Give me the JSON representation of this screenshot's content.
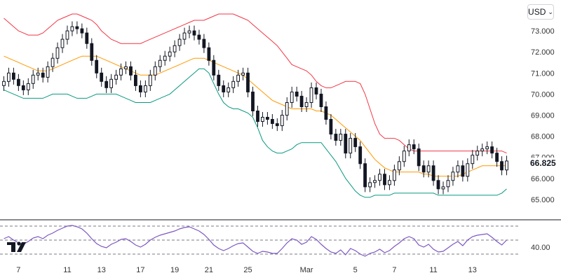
{
  "currency_selector": {
    "label": "USD",
    "chevron_icon": "chevron-down-icon"
  },
  "logo": {
    "name": "tradingview-logo"
  },
  "colors": {
    "candle_up": "#131722",
    "candle_down": "#131722",
    "upper_band": "#f23645",
    "middle_band": "#ff9800",
    "lower_band": "#089981",
    "rsi_line": "#7e57c2",
    "grid_dash": "#787b86",
    "separator": "#131722"
  },
  "chart_data": [
    {
      "type": "candlestick",
      "title": "",
      "last_value_label": "66.825",
      "y_ticks": [
        "73.000",
        "72.000",
        "71.000",
        "70.000",
        "69.000",
        "68.000",
        "67.000",
        "66.000",
        "65.000"
      ],
      "y_tick_values": [
        73,
        72,
        71,
        70,
        69,
        68,
        67,
        66,
        65
      ],
      "ylim": [
        64.5,
        73.8
      ],
      "x_labels": [
        "7",
        "11",
        "13",
        "17",
        "19",
        "21",
        "25",
        "Mar",
        "5",
        "7",
        "11",
        "13"
      ],
      "x_label_index": [
        3,
        13,
        20,
        28,
        35,
        42,
        50,
        62,
        72,
        80,
        88,
        96
      ],
      "bar_count": 104,
      "close": [
        70.6,
        71.0,
        70.7,
        70.4,
        70.2,
        70.5,
        70.9,
        71.0,
        70.8,
        71.3,
        71.7,
        72.2,
        72.6,
        73.0,
        73.2,
        73.1,
        72.9,
        72.4,
        71.6,
        71.0,
        70.6,
        70.3,
        70.7,
        70.9,
        71.2,
        71.3,
        70.9,
        70.4,
        70.1,
        70.4,
        70.9,
        71.3,
        71.6,
        71.8,
        72.0,
        72.3,
        72.6,
        72.9,
        73.0,
        72.8,
        72.6,
        72.2,
        71.6,
        70.9,
        70.4,
        70.1,
        70.3,
        70.6,
        70.9,
        71.0,
        70.1,
        69.2,
        68.7,
        68.9,
        68.8,
        68.6,
        68.5,
        69.0,
        69.6,
        70.1,
        69.9,
        69.4,
        69.6,
        70.3,
        70.0,
        69.4,
        68.8,
        68.1,
        67.8,
        68.1,
        67.2,
        67.9,
        67.5,
        66.7,
        65.6,
        65.8,
        65.9,
        66.2,
        65.7,
        65.9,
        66.4,
        66.8,
        67.3,
        67.6,
        67.4,
        66.6,
        66.3,
        66.6,
        65.9,
        65.5,
        65.6,
        65.9,
        66.3,
        66.6,
        66.1,
        66.7,
        67.1,
        67.3,
        67.4,
        67.5,
        67.2,
        66.8,
        66.4,
        66.825
      ],
      "open": [
        70.4,
        70.6,
        71.0,
        70.7,
        70.4,
        70.2,
        70.5,
        70.9,
        71.0,
        70.8,
        71.3,
        71.7,
        72.2,
        72.6,
        73.0,
        73.2,
        73.1,
        72.9,
        72.4,
        71.6,
        71.0,
        70.6,
        70.3,
        70.7,
        70.9,
        71.2,
        71.3,
        70.9,
        70.4,
        70.1,
        70.4,
        70.9,
        71.3,
        71.6,
        71.8,
        72.0,
        72.3,
        72.6,
        72.9,
        73.0,
        72.8,
        72.6,
        72.2,
        71.6,
        70.9,
        70.4,
        70.1,
        70.3,
        70.6,
        70.9,
        71.0,
        70.1,
        69.2,
        68.7,
        68.9,
        68.8,
        68.6,
        68.5,
        69.0,
        69.6,
        70.1,
        69.9,
        69.4,
        69.6,
        70.3,
        70.0,
        69.4,
        68.8,
        68.1,
        67.8,
        68.1,
        67.2,
        67.9,
        67.5,
        66.7,
        65.6,
        65.8,
        65.9,
        66.2,
        65.7,
        65.9,
        66.4,
        66.8,
        67.3,
        67.6,
        67.4,
        66.6,
        66.3,
        66.6,
        65.9,
        65.5,
        65.6,
        65.9,
        66.3,
        66.6,
        66.1,
        66.7,
        67.1,
        67.3,
        67.4,
        67.5,
        67.2,
        66.8,
        66.4
      ],
      "upper_band": [
        73.6,
        73.4,
        73.2,
        73.0,
        72.9,
        72.8,
        72.8,
        72.8,
        72.9,
        73.1,
        73.3,
        73.5,
        73.6,
        73.7,
        73.8,
        73.8,
        73.7,
        73.6,
        73.5,
        73.3,
        73.0,
        72.8,
        72.6,
        72.5,
        72.4,
        72.4,
        72.4,
        72.4,
        72.4,
        72.5,
        72.6,
        72.7,
        72.8,
        72.9,
        73.0,
        73.1,
        73.2,
        73.3,
        73.4,
        73.5,
        73.5,
        73.5,
        73.6,
        73.7,
        73.8,
        73.8,
        73.8,
        73.8,
        73.7,
        73.6,
        73.5,
        73.3,
        73.1,
        72.9,
        72.7,
        72.5,
        72.3,
        72.0,
        71.7,
        71.4,
        71.3,
        71.2,
        71.1,
        70.9,
        70.6,
        70.4,
        70.3,
        70.3,
        70.4,
        70.5,
        70.6,
        70.6,
        70.6,
        70.5,
        70.0,
        69.3,
        68.6,
        68.1,
        67.9,
        67.9,
        67.9,
        67.8,
        67.6,
        67.4,
        67.3,
        67.3,
        67.3,
        67.3,
        67.3,
        67.3,
        67.3,
        67.3,
        67.3,
        67.3,
        67.3,
        67.3,
        67.3,
        67.3,
        67.3,
        67.3,
        67.3,
        67.3,
        67.3,
        67.2
      ],
      "middle_band": [
        71.8,
        71.7,
        71.6,
        71.5,
        71.4,
        71.3,
        71.2,
        71.1,
        71.1,
        71.1,
        71.2,
        71.3,
        71.4,
        71.5,
        71.6,
        71.7,
        71.8,
        71.8,
        71.8,
        71.8,
        71.7,
        71.6,
        71.5,
        71.4,
        71.3,
        71.2,
        71.1,
        71.0,
        70.9,
        70.9,
        70.9,
        70.9,
        71.0,
        71.1,
        71.2,
        71.3,
        71.4,
        71.5,
        71.6,
        71.7,
        71.7,
        71.7,
        71.6,
        71.5,
        71.4,
        71.3,
        71.2,
        71.1,
        71.0,
        70.9,
        70.7,
        70.5,
        70.3,
        70.1,
        69.9,
        69.7,
        69.6,
        69.5,
        69.4,
        69.3,
        69.3,
        69.3,
        69.3,
        69.3,
        69.2,
        69.2,
        69.1,
        69.0,
        68.8,
        68.6,
        68.4,
        68.2,
        68.0,
        67.8,
        67.5,
        67.2,
        66.9,
        66.7,
        66.5,
        66.4,
        66.3,
        66.3,
        66.3,
        66.3,
        66.3,
        66.3,
        66.2,
        66.2,
        66.1,
        66.1,
        66.1,
        66.1,
        66.1,
        66.1,
        66.2,
        66.3,
        66.4,
        66.5,
        66.6,
        66.6,
        66.6,
        66.6,
        66.6,
        66.6
      ],
      "lower_band": [
        70.2,
        70.1,
        70.0,
        69.9,
        69.8,
        69.8,
        69.8,
        69.8,
        69.8,
        69.9,
        70.0,
        70.0,
        70.0,
        70.0,
        69.9,
        69.8,
        69.8,
        69.8,
        69.9,
        70.0,
        70.0,
        70.0,
        70.0,
        70.0,
        69.9,
        69.8,
        69.7,
        69.6,
        69.6,
        69.6,
        69.6,
        69.7,
        69.8,
        69.9,
        70.0,
        70.2,
        70.4,
        70.6,
        70.8,
        71.0,
        71.2,
        71.2,
        71.0,
        70.5,
        70.0,
        69.6,
        69.4,
        69.3,
        69.3,
        69.2,
        69.1,
        68.9,
        68.4,
        67.8,
        67.5,
        67.3,
        67.2,
        67.2,
        67.3,
        67.4,
        67.6,
        67.7,
        67.7,
        67.7,
        67.7,
        67.7,
        67.4,
        67.1,
        66.8,
        66.4,
        66.0,
        65.7,
        65.4,
        65.2,
        65.1,
        65.1,
        65.2,
        65.2,
        65.2,
        65.2,
        65.3,
        65.3,
        65.3,
        65.3,
        65.3,
        65.3,
        65.3,
        65.3,
        65.3,
        65.2,
        65.2,
        65.2,
        65.2,
        65.2,
        65.2,
        65.2,
        65.2,
        65.2,
        65.2,
        65.2,
        65.2,
        65.2,
        65.3,
        65.5
      ]
    },
    {
      "type": "line",
      "title": "",
      "y_ticks": [
        "40.00"
      ],
      "y_tick_values": [
        40
      ],
      "ylim": [
        25,
        75
      ],
      "guide_levels": [
        70,
        50,
        30
      ],
      "values": [
        52,
        55,
        50,
        46,
        44,
        48,
        53,
        55,
        52,
        57,
        60,
        64,
        67,
        70,
        71,
        69,
        66,
        60,
        52,
        45,
        41,
        39,
        44,
        47,
        51,
        52,
        48,
        43,
        40,
        44,
        50,
        54,
        57,
        59,
        61,
        63,
        66,
        68,
        69,
        66,
        63,
        58,
        51,
        43,
        38,
        35,
        38,
        42,
        45,
        46,
        40,
        34,
        31,
        34,
        33,
        31,
        31,
        38,
        46,
        52,
        50,
        44,
        47,
        55,
        51,
        44,
        38,
        33,
        31,
        36,
        29,
        38,
        35,
        30,
        27,
        31,
        33,
        37,
        32,
        35,
        41,
        46,
        52,
        55,
        52,
        43,
        40,
        44,
        37,
        33,
        34,
        39,
        44,
        48,
        42,
        50,
        55,
        57,
        58,
        59,
        54,
        48,
        43,
        50
      ]
    }
  ]
}
